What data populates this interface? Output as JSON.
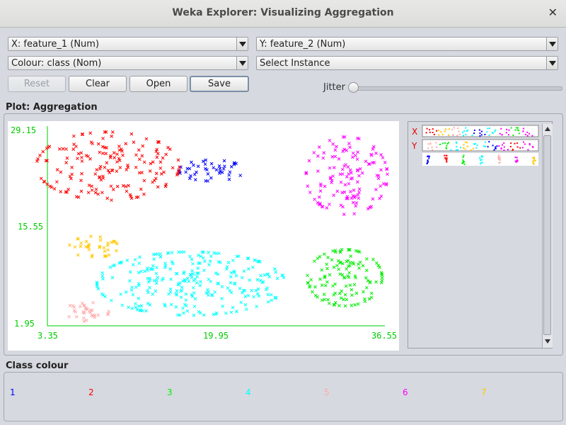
{
  "window": {
    "title": "Weka Explorer: Visualizing Aggregation"
  },
  "controls": {
    "x_axis": "X: feature_1 (Num)",
    "y_axis": "Y: feature_2 (Num)",
    "colour": "Colour: class (Nom)",
    "instance": "Select Instance",
    "buttons": {
      "reset": "Reset",
      "clear": "Clear",
      "open": "Open",
      "save": "Save"
    },
    "jitter_label": "Jitter",
    "jitter_value": 0
  },
  "plot": {
    "section_title": "Plot: Aggregation",
    "y_max_label": "29.15",
    "y_mid_label": "15.55",
    "y_min_label": "1.95",
    "x_min_label": "3.35",
    "x_mid_label": "19.95",
    "x_max_label": "36.55",
    "axis_color": "#00cc00"
  },
  "attributes": {
    "x_marker": "X",
    "y_marker": "Y"
  },
  "class_colour": {
    "section_title": "Class colour",
    "classes": [
      {
        "label": "1",
        "color": "#0000ff"
      },
      {
        "label": "2",
        "color": "#ff0000"
      },
      {
        "label": "3",
        "color": "#00ee00"
      },
      {
        "label": "4",
        "color": "#00ffff"
      },
      {
        "label": "5",
        "color": "#ffaaaa"
      },
      {
        "label": "6",
        "color": "#ff00ff"
      },
      {
        "label": "7",
        "color": "#ffc800"
      }
    ]
  },
  "chart_data": {
    "type": "scatter",
    "xlabel": "feature_1",
    "ylabel": "feature_2",
    "xlim": [
      3.35,
      36.55
    ],
    "ylim": [
      1.95,
      29.15
    ],
    "legend": "bottom",
    "clusters": [
      {
        "name": "1",
        "center": [
          19.5,
          23.1
        ],
        "spread": [
          2.0,
          0.9
        ],
        "count": 45
      },
      {
        "name": "2",
        "center": [
          9.3,
          23.7
        ],
        "spread": [
          4.4,
          2.9
        ],
        "count": 170
      },
      {
        "name": "3",
        "center": [
          32.6,
          8.5
        ],
        "spread": [
          2.3,
          2.4
        ],
        "count": 120
      },
      {
        "name": "4",
        "center": [
          17.5,
          7.7
        ],
        "spread": [
          5.8,
          2.7
        ],
        "count": 273
      },
      {
        "name": "5",
        "center": [
          7.3,
          3.9
        ],
        "spread": [
          1.3,
          0.9
        ],
        "count": 34
      },
      {
        "name": "6",
        "center": [
          32.8,
          22.4
        ],
        "spread": [
          2.5,
          3.3
        ],
        "count": 130
      },
      {
        "name": "7",
        "center": [
          7.9,
          12.7
        ],
        "spread": [
          1.5,
          0.9
        ],
        "count": 35
      }
    ]
  }
}
